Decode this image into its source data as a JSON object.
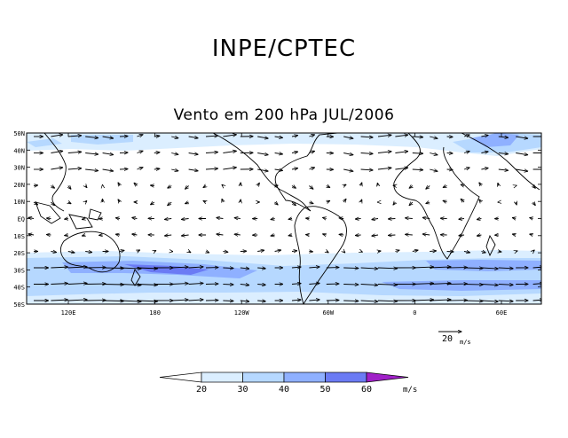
{
  "header": {
    "organization": "INPE/CPTEC"
  },
  "map": {
    "title": "Vento em 200 hPa JUL/2006",
    "lat_labels": [
      "50N",
      "40N",
      "30N",
      "20N",
      "10N",
      "EQ",
      "10S",
      "20S",
      "30S",
      "40S",
      "50S"
    ],
    "lon_labels": [
      "120E",
      "180",
      "120W",
      "60W",
      "0",
      "60E"
    ],
    "reference_vector": {
      "value": "20",
      "unit": "m/s"
    }
  },
  "colorbar": {
    "ticks": [
      "20",
      "30",
      "40",
      "50",
      "60"
    ],
    "unit": "m/s",
    "colors": [
      "#ffffff",
      "#dbeeff",
      "#b6d8ff",
      "#8fb0ff",
      "#6b7bf4",
      "#4b4bd8",
      "#a020c8"
    ]
  }
}
